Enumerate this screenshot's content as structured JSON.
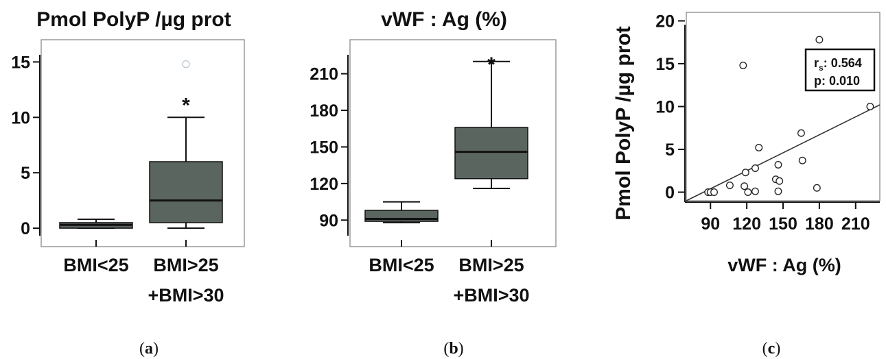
{
  "colors": {
    "box_fill": "#5b6560",
    "outlier": "#c4ccd6",
    "ink": "#111111"
  },
  "chart_data": [
    {
      "type": "box",
      "panel_label": "a",
      "title": "Pmol PolyP /µg prot",
      "ylim": [
        -0.8,
        16.2
      ],
      "yticks": [
        0,
        5,
        10,
        15
      ],
      "ytick_labels": [
        "0",
        "5",
        "10",
        "15"
      ],
      "categories": [
        {
          "label_lines": [
            "BMI<25"
          ],
          "min": 0.0,
          "q1": 0.0,
          "median": 0.3,
          "q3": 0.5,
          "max": 0.8,
          "outliers": [],
          "significant": false
        },
        {
          "label_lines": [
            "BMI>25",
            "+BMI>30"
          ],
          "min": 0.0,
          "q1": 0.5,
          "median": 2.5,
          "q3": 6.0,
          "max": 10.0,
          "outliers": [
            14.8
          ],
          "significant": true
        }
      ],
      "significance_marker": "*"
    },
    {
      "type": "box",
      "panel_label": "b",
      "title": "vWF : Ag (%)",
      "ylim": [
        75,
        230
      ],
      "yticks": [
        90,
        120,
        150,
        180,
        210
      ],
      "ytick_labels": [
        "90",
        "120",
        "150",
        "180",
        "210"
      ],
      "categories": [
        {
          "label_lines": [
            "BMI<25"
          ],
          "min": 88,
          "q1": 89,
          "median": 91,
          "q3": 98,
          "max": 105,
          "outliers": [],
          "significant": false
        },
        {
          "label_lines": [
            "BMI>25",
            "+BMI>30"
          ],
          "min": 116,
          "q1": 124,
          "median": 146,
          "q3": 166,
          "max": 220,
          "outliers": [],
          "significant": true
        }
      ],
      "significance_marker": "*"
    },
    {
      "type": "scatter",
      "panel_label": "c",
      "xlabel": "vWF : Ag (%)",
      "ylabel": "Pmol PolyP /µg prot",
      "xlim": [
        70,
        230
      ],
      "ylim": [
        -1,
        21
      ],
      "xticks": [
        90,
        120,
        150,
        180,
        210
      ],
      "xtick_labels": [
        "90",
        "120",
        "150",
        "180",
        "210"
      ],
      "yticks": [
        0,
        5,
        10,
        15,
        20
      ],
      "ytick_labels": [
        "0",
        "5",
        "10",
        "15",
        "20"
      ],
      "points": [
        {
          "x": 88,
          "y": 0.0
        },
        {
          "x": 90,
          "y": 0.0
        },
        {
          "x": 93,
          "y": 0.0
        },
        {
          "x": 106,
          "y": 0.8
        },
        {
          "x": 117,
          "y": 14.8
        },
        {
          "x": 118,
          "y": 0.7
        },
        {
          "x": 119,
          "y": 2.3
        },
        {
          "x": 121,
          "y": 0.0
        },
        {
          "x": 127,
          "y": 2.8
        },
        {
          "x": 127,
          "y": 0.1
        },
        {
          "x": 130,
          "y": 5.2
        },
        {
          "x": 144,
          "y": 1.5
        },
        {
          "x": 146,
          "y": 0.1
        },
        {
          "x": 146,
          "y": 3.2
        },
        {
          "x": 147,
          "y": 1.3
        },
        {
          "x": 165,
          "y": 6.9
        },
        {
          "x": 166,
          "y": 3.7
        },
        {
          "x": 178,
          "y": 0.5
        },
        {
          "x": 180,
          "y": 17.8
        },
        {
          "x": 222,
          "y": 10.0
        }
      ],
      "fit_line": {
        "x1": 70,
        "y1": -1.0,
        "x2": 230,
        "y2": 10.2
      },
      "stats": {
        "rs_symbol": "r",
        "rs_subscript": "s",
        "rs_value": ": 0.564",
        "p": "p: 0.010"
      }
    }
  ]
}
